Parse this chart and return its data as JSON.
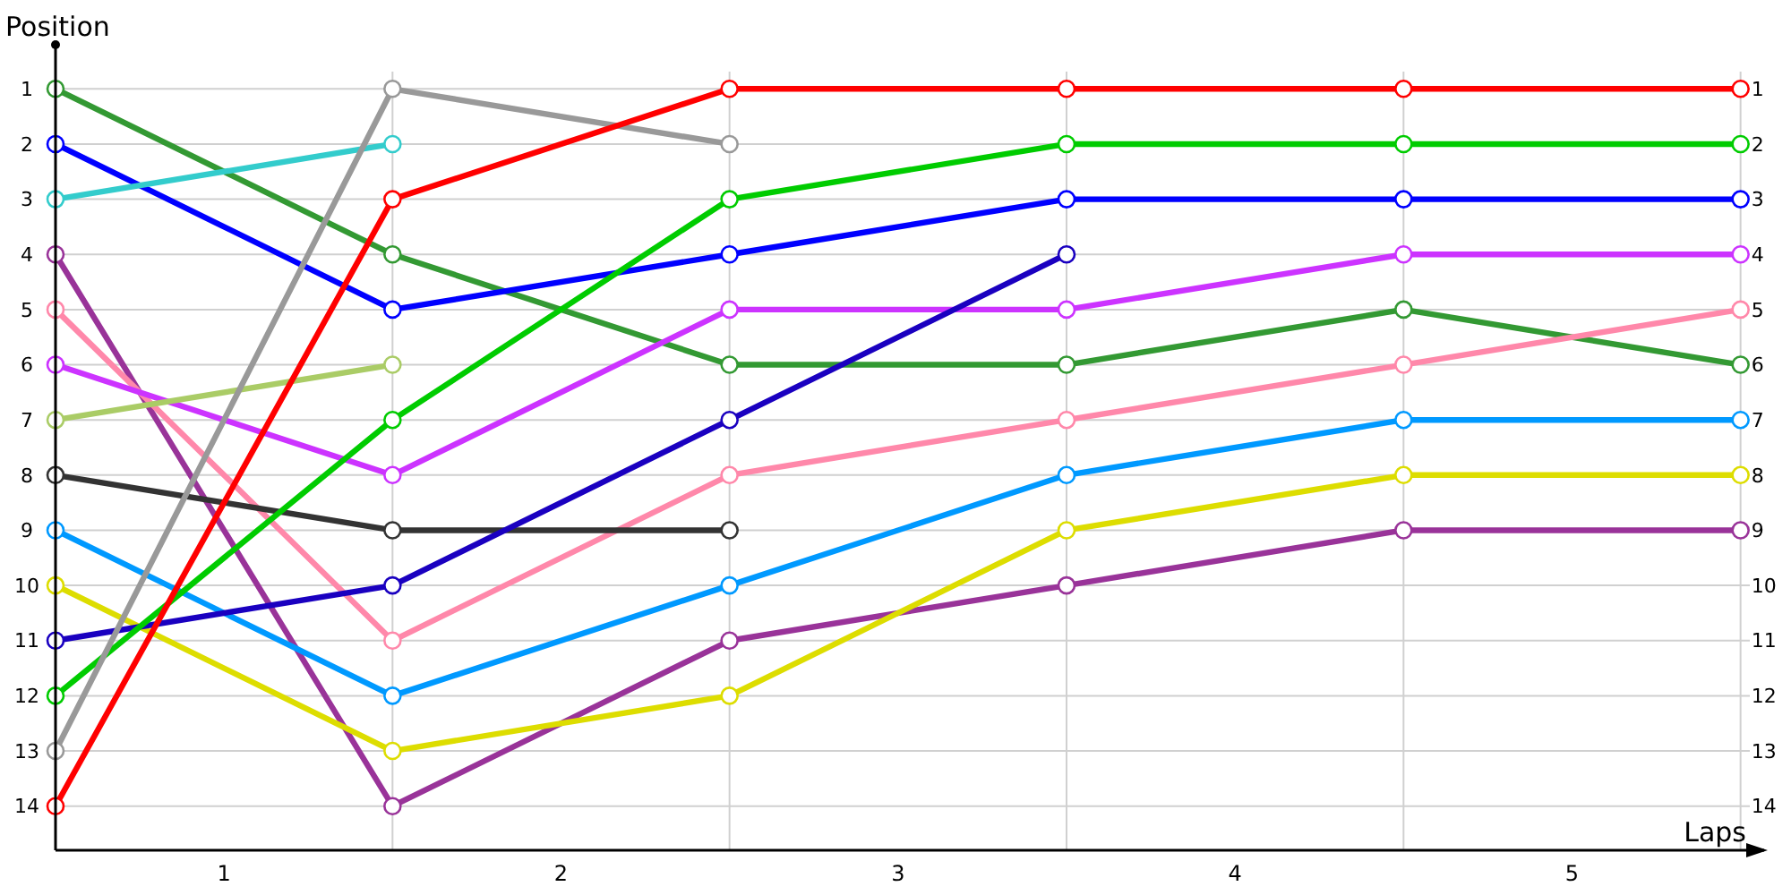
{
  "chart_data": {
    "type": "line",
    "xlabel": "Laps",
    "ylabel": "Position",
    "x": [
      0,
      1,
      2,
      3,
      4,
      5
    ],
    "xlim": [
      0,
      5.07
    ],
    "xticks": [
      {
        "value": 0,
        "label": null
      },
      {
        "value": 0.5,
        "label": "1"
      },
      {
        "value": 1,
        "label": null
      },
      {
        "value": 1.5,
        "label": "2"
      },
      {
        "value": 2,
        "label": null
      },
      {
        "value": 2.5,
        "label": "3"
      },
      {
        "value": 3,
        "label": null
      },
      {
        "value": 3.5,
        "label": "4"
      },
      {
        "value": 4,
        "label": null
      },
      {
        "value": 4.5,
        "label": "5"
      },
      {
        "value": 5,
        "label": null
      }
    ],
    "ylim": [
      14.8,
      0.2
    ],
    "yticks": [
      1,
      2,
      3,
      4,
      5,
      6,
      7,
      8,
      9,
      10,
      11,
      12,
      13,
      14
    ],
    "y2lim": [
      14.8,
      0.2
    ],
    "y2ticks": [
      1,
      2,
      3,
      4,
      5,
      6,
      7,
      8,
      9,
      10,
      11,
      12,
      13,
      14
    ],
    "grid": true,
    "marker": "circle",
    "line_style": "solid",
    "series": [
      {
        "color": "#339933",
        "values": [
          1,
          4,
          6,
          6,
          5,
          6
        ]
      },
      {
        "color": "#0000ff",
        "values": [
          2,
          5,
          4,
          3,
          3,
          3
        ]
      },
      {
        "color": "#33cccc",
        "values": [
          3,
          2,
          null,
          null,
          null,
          null
        ]
      },
      {
        "color": "#993399",
        "values": [
          4,
          14,
          11,
          10,
          9,
          9
        ]
      },
      {
        "color": "#ff88aa",
        "values": [
          5,
          11,
          8,
          7,
          6,
          5
        ]
      },
      {
        "color": "#cc33ff",
        "values": [
          6,
          8,
          5,
          5,
          4,
          4
        ]
      },
      {
        "color": "#aacc66",
        "values": [
          7,
          6,
          null,
          null,
          null,
          null
        ]
      },
      {
        "color": "#333333",
        "values": [
          8,
          9,
          9,
          null,
          null,
          null
        ]
      },
      {
        "color": "#0099ff",
        "values": [
          9,
          12,
          10,
          8,
          7,
          7
        ]
      },
      {
        "color": "#dddd00",
        "values": [
          10,
          13,
          12,
          9,
          8,
          8
        ]
      },
      {
        "color": "#1a00c0",
        "values": [
          11,
          10,
          7,
          4,
          null,
          null
        ]
      },
      {
        "color": "#00cc00",
        "values": [
          12,
          7,
          3,
          2,
          2,
          2
        ]
      },
      {
        "color": "#999999",
        "values": [
          13,
          1,
          2,
          null,
          null,
          null
        ]
      },
      {
        "color": "#ff0000",
        "values": [
          14,
          3,
          1,
          1,
          1,
          1
        ]
      }
    ]
  }
}
